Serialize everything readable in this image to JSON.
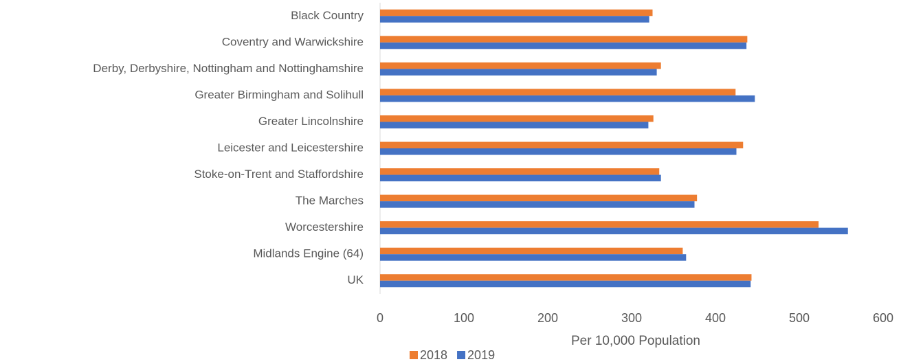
{
  "chart_data": {
    "type": "hbar",
    "xlabel": "Per 10,000 Population",
    "categories": [
      "Black Country",
      "Coventry and Warwickshire",
      "Derby, Derbyshire, Nottingham and Nottinghamshire",
      "Greater Birmingham and Solihull",
      "Greater Lincolnshire",
      "Leicester and Leicestershire",
      "Stoke-on-Trent and Staffordshire",
      "The Marches",
      "Worcestershire",
      "Midlands Engine (64)",
      "UK"
    ],
    "series": [
      {
        "name": "2018",
        "color": "#ed7d31",
        "values": [
          325,
          438,
          335,
          424,
          326,
          433,
          333,
          378,
          523,
          361,
          443
        ]
      },
      {
        "name": "2019",
        "color": "#4472c4",
        "values": [
          321,
          437,
          330,
          447,
          320,
          425,
          335,
          375,
          558,
          365,
          442
        ]
      }
    ],
    "xlim": [
      0,
      600
    ],
    "xticks": [
      0,
      100,
      200,
      300,
      400,
      500,
      600
    ],
    "grid": false,
    "legend": "bottom"
  }
}
